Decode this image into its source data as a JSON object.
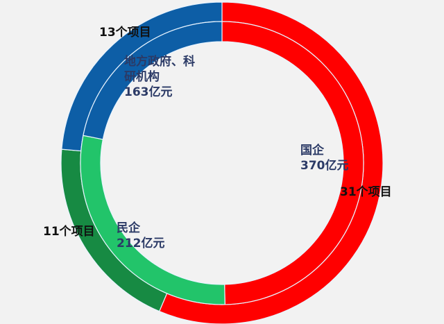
{
  "chart_data": {
    "type": "pie",
    "subtype": "nested-donut",
    "outer_ring": {
      "categories": [
        "国企",
        "民企",
        "地方政府、科研机构"
      ],
      "values": [
        31,
        11,
        13
      ],
      "labels": [
        "31个项目",
        "11个项目",
        "13个项目"
      ]
    },
    "inner_ring": {
      "categories": [
        "国企",
        "民企",
        "地方政府、科研机构"
      ],
      "values": [
        370,
        212,
        163
      ],
      "labels": [
        {
          "name": "国企",
          "value": "370亿元"
        },
        {
          "name": "民企",
          "value": "212亿元"
        },
        {
          "name_line1": "地方政府、科",
          "name_line2": "研机构",
          "value": "163亿元"
        }
      ]
    },
    "colors": {
      "outer": [
        "#ff0000",
        "#178a43",
        "#0d5ea6"
      ],
      "inner": [
        "#ff0000",
        "#22c46a",
        "#0d5ea6"
      ],
      "background": "#f2f2f2"
    }
  }
}
